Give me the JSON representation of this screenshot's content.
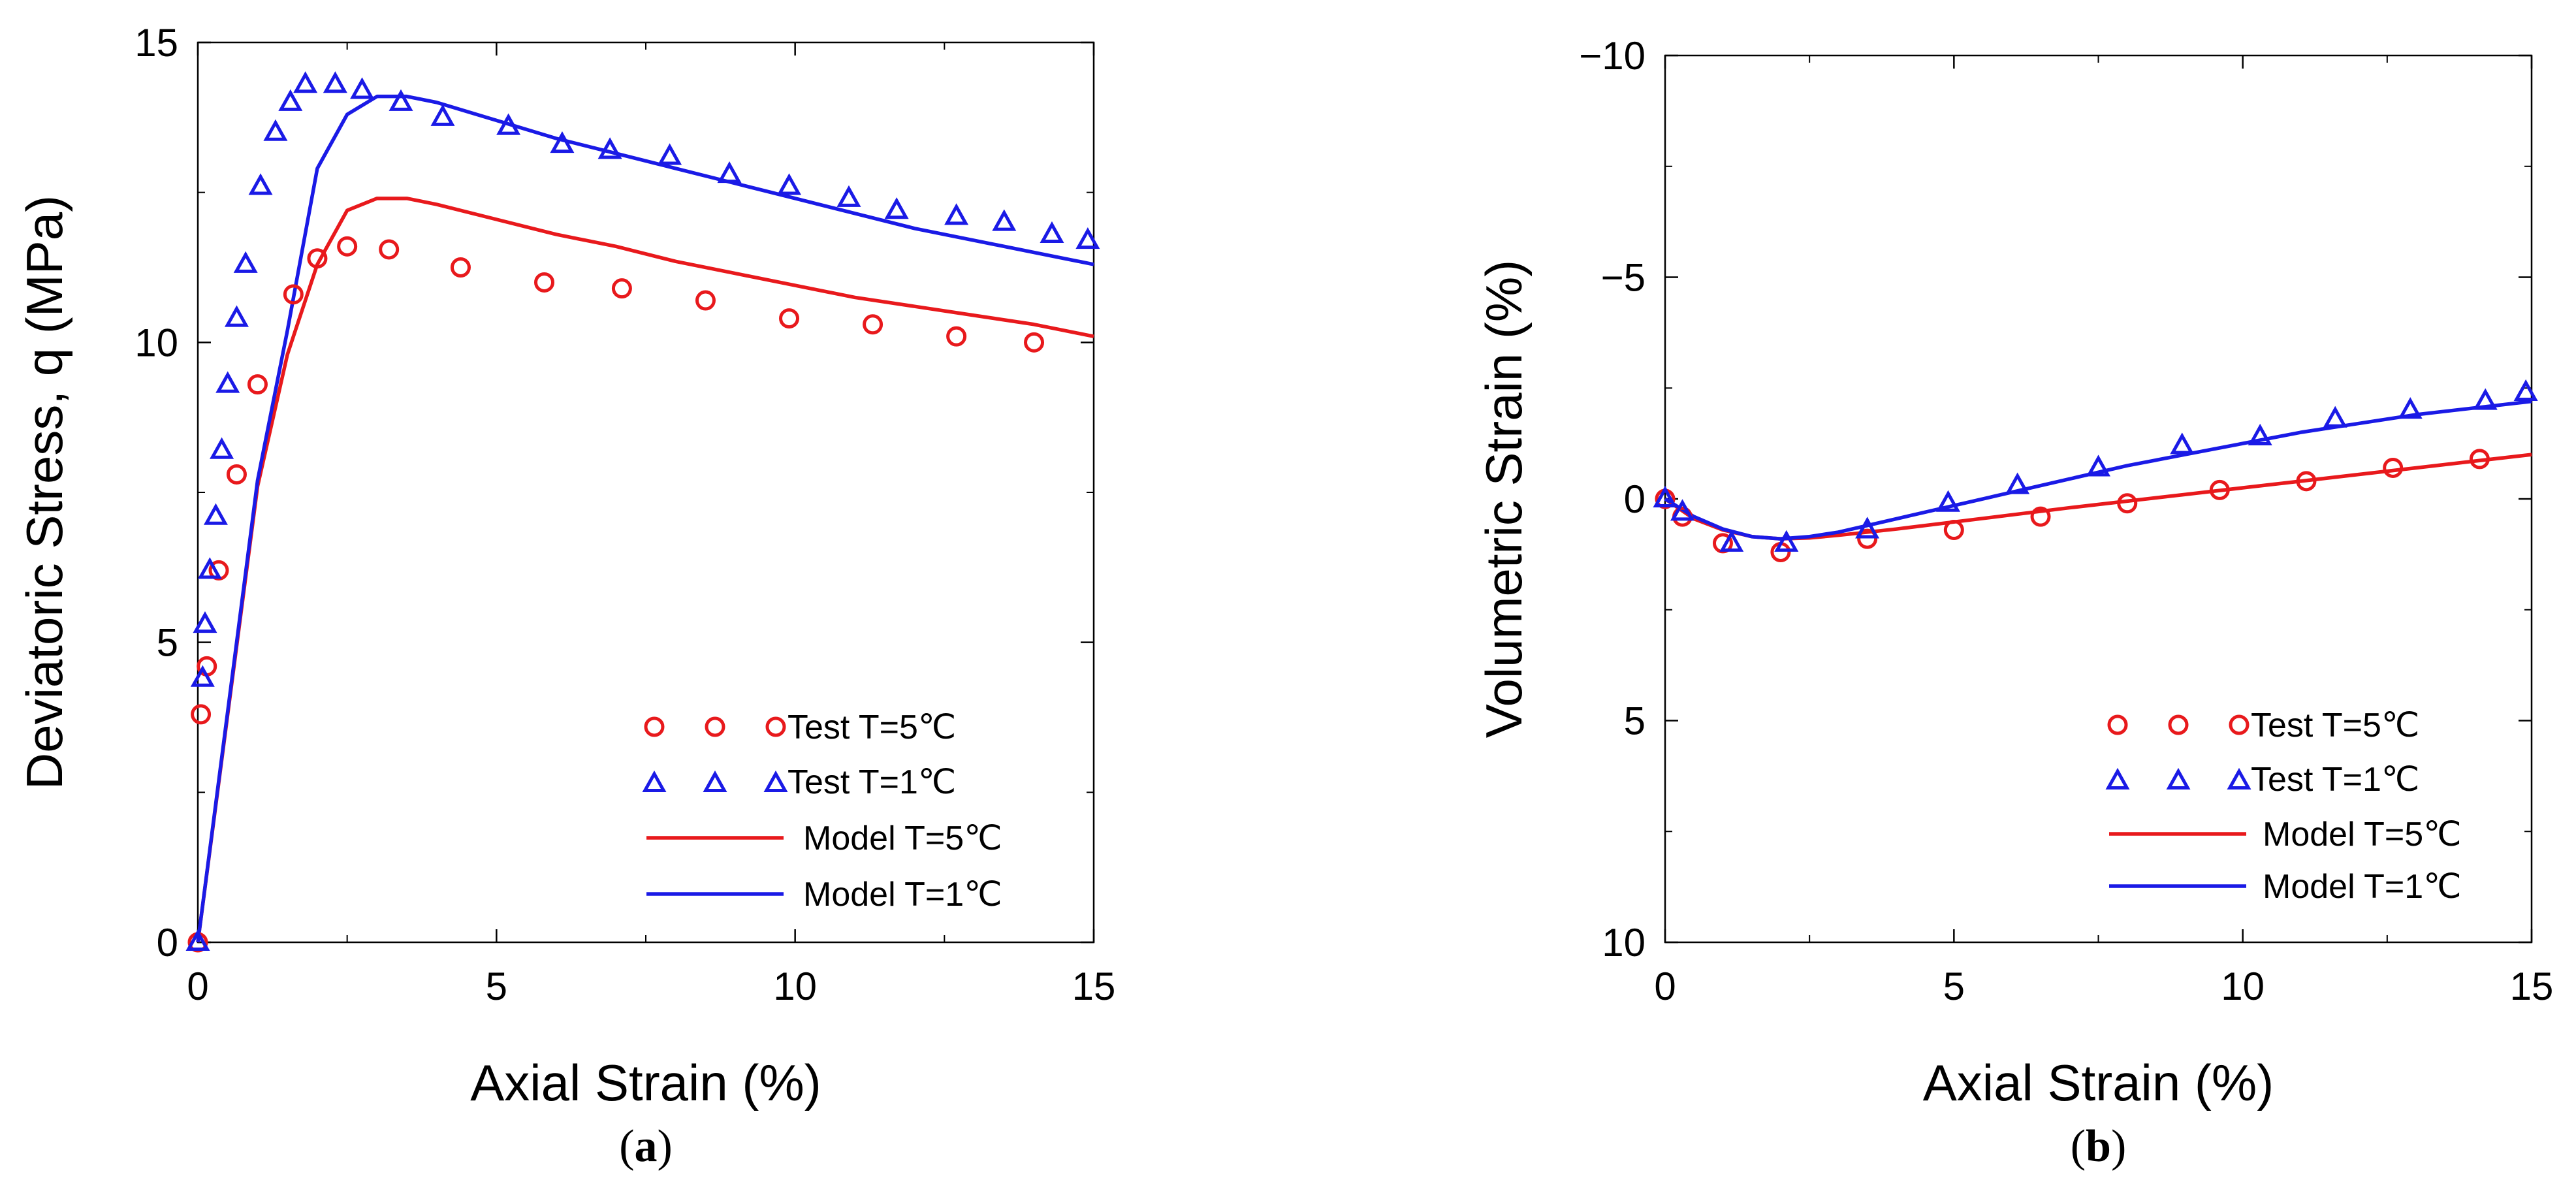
{
  "chart_data": [
    {
      "type": "scatter",
      "panel_label": "a",
      "xlabel": "Axial Strain (%)",
      "ylabel": "Deviatoric Stress, q (MPa)",
      "xlim": [
        0,
        15
      ],
      "ylim": [
        0,
        15
      ],
      "y_inverted": false,
      "xticks": [
        0,
        5,
        10,
        15
      ],
      "yticks": [
        0,
        5,
        10,
        15
      ],
      "xtick_labels": [
        "0",
        "5",
        "10",
        "15"
      ],
      "ytick_labels": [
        "0",
        "5",
        "10",
        "15"
      ],
      "legend_position": "bottom-right",
      "series": [
        {
          "name": "Test  T=5℃",
          "kind": "scatter",
          "marker": "circle",
          "color": "#e8191c",
          "x": [
            0.0,
            0.05,
            0.15,
            0.35,
            0.65,
            1.0,
            1.6,
            2.0,
            2.5,
            3.2,
            4.4,
            5.8,
            7.1,
            8.5,
            9.9,
            11.3,
            12.7,
            14.0
          ],
          "y": [
            0.0,
            3.8,
            4.6,
            6.2,
            7.8,
            9.3,
            10.8,
            11.4,
            11.6,
            11.55,
            11.25,
            11.0,
            10.9,
            10.7,
            10.4,
            10.3,
            10.1,
            10.0
          ]
        },
        {
          "name": "Test  T=1℃",
          "kind": "scatter",
          "marker": "triangle",
          "color": "#1a1ae6",
          "x": [
            0.0,
            0.08,
            0.12,
            0.2,
            0.3,
            0.4,
            0.5,
            0.65,
            0.8,
            1.05,
            1.3,
            1.55,
            1.8,
            2.3,
            2.75,
            3.4,
            4.1,
            5.2,
            6.1,
            6.9,
            7.9,
            8.9,
            9.9,
            10.9,
            11.7,
            12.7,
            13.5,
            14.3,
            14.9
          ],
          "y": [
            0.0,
            4.4,
            5.3,
            6.2,
            7.1,
            8.2,
            9.3,
            10.4,
            11.3,
            12.6,
            13.5,
            14.0,
            14.3,
            14.3,
            14.2,
            14.0,
            13.75,
            13.6,
            13.3,
            13.2,
            13.1,
            12.8,
            12.6,
            12.4,
            12.2,
            12.1,
            12.0,
            11.8,
            11.7
          ]
        },
        {
          "name": "Model  T=5℃",
          "kind": "line",
          "color": "#e8191c",
          "x": [
            0,
            1.0,
            1.5,
            2.0,
            2.5,
            3.0,
            3.5,
            4.0,
            5.0,
            6.0,
            7.0,
            8.0,
            9.0,
            10.0,
            11.0,
            12.0,
            13.0,
            14.0,
            15.0
          ],
          "y": [
            0,
            7.6,
            9.8,
            11.3,
            12.2,
            12.4,
            12.4,
            12.3,
            12.05,
            11.8,
            11.6,
            11.35,
            11.15,
            10.95,
            10.75,
            10.6,
            10.45,
            10.3,
            10.1
          ]
        },
        {
          "name": "Model  T=1℃",
          "kind": "line",
          "color": "#1a1ae6",
          "x": [
            0,
            1.0,
            1.5,
            2.0,
            2.5,
            3.0,
            3.5,
            4.0,
            5.0,
            6.0,
            7.0,
            8.0,
            9.0,
            10.0,
            11.0,
            12.0,
            13.0,
            14.0,
            15.0
          ],
          "y": [
            0,
            7.7,
            10.2,
            12.9,
            13.8,
            14.1,
            14.1,
            14.0,
            13.7,
            13.4,
            13.15,
            12.9,
            12.65,
            12.4,
            12.15,
            11.9,
            11.7,
            11.5,
            11.3
          ]
        }
      ]
    },
    {
      "type": "scatter",
      "panel_label": "b",
      "xlabel": "Axial Strain (%)",
      "ylabel": "Volumetric Strain (%)",
      "xlim": [
        0,
        15
      ],
      "ylim": [
        10,
        -10
      ],
      "y_inverted": true,
      "xticks": [
        0,
        5,
        10,
        15
      ],
      "yticks": [
        -10,
        -5,
        0,
        5,
        10
      ],
      "xtick_labels": [
        "0",
        "5",
        "10",
        "15"
      ],
      "ytick_labels": [
        "−10",
        "−5",
        "0",
        "5",
        "10"
      ],
      "legend_position": "bottom-right",
      "series": [
        {
          "name": "Test  T=5℃",
          "kind": "scatter",
          "marker": "circle",
          "color": "#e8191c",
          "x": [
            0.0,
            0.3,
            1.0,
            2.0,
            3.5,
            5.0,
            6.5,
            8.0,
            9.6,
            11.1,
            12.6,
            14.1
          ],
          "y": [
            0.0,
            0.4,
            1.0,
            1.2,
            0.9,
            0.7,
            0.4,
            0.1,
            -0.2,
            -0.4,
            -0.7,
            -0.9
          ]
        },
        {
          "name": "Test  T=1℃",
          "kind": "scatter",
          "marker": "triangle",
          "color": "#1a1ae6",
          "x": [
            0.0,
            0.3,
            1.15,
            2.1,
            3.5,
            4.9,
            6.1,
            7.5,
            8.95,
            10.3,
            11.6,
            12.9,
            14.2,
            14.9
          ],
          "y": [
            0.0,
            0.3,
            1.0,
            1.0,
            0.7,
            0.1,
            -0.3,
            -0.7,
            -1.2,
            -1.4,
            -1.8,
            -2.0,
            -2.2,
            -2.4
          ]
        },
        {
          "name": "Model  T=5℃",
          "kind": "line",
          "color": "#e8191c",
          "x": [
            0,
            0.5,
            1.0,
            1.5,
            2.0,
            2.5,
            3.0,
            4.0,
            5.0,
            6.0,
            7.0,
            8.0,
            9.0,
            10.0,
            11.0,
            12.0,
            13.0,
            14.0,
            15.0
          ],
          "y": [
            0,
            0.45,
            0.7,
            0.85,
            0.9,
            0.88,
            0.82,
            0.68,
            0.52,
            0.36,
            0.2,
            0.05,
            -0.1,
            -0.25,
            -0.4,
            -0.55,
            -0.7,
            -0.85,
            -1.0
          ]
        },
        {
          "name": "Model  T=1℃",
          "kind": "line",
          "color": "#1a1ae6",
          "x": [
            0,
            0.5,
            1.0,
            1.5,
            2.0,
            2.5,
            3.0,
            4.0,
            5.0,
            6.0,
            7.0,
            8.0,
            9.0,
            10.0,
            11.0,
            12.0,
            13.0,
            14.0,
            15.0
          ],
          "y": [
            0,
            0.4,
            0.68,
            0.85,
            0.9,
            0.85,
            0.75,
            0.45,
            0.15,
            -0.15,
            -0.45,
            -0.75,
            -1.0,
            -1.25,
            -1.5,
            -1.7,
            -1.9,
            -2.05,
            -2.2
          ]
        }
      ]
    }
  ]
}
